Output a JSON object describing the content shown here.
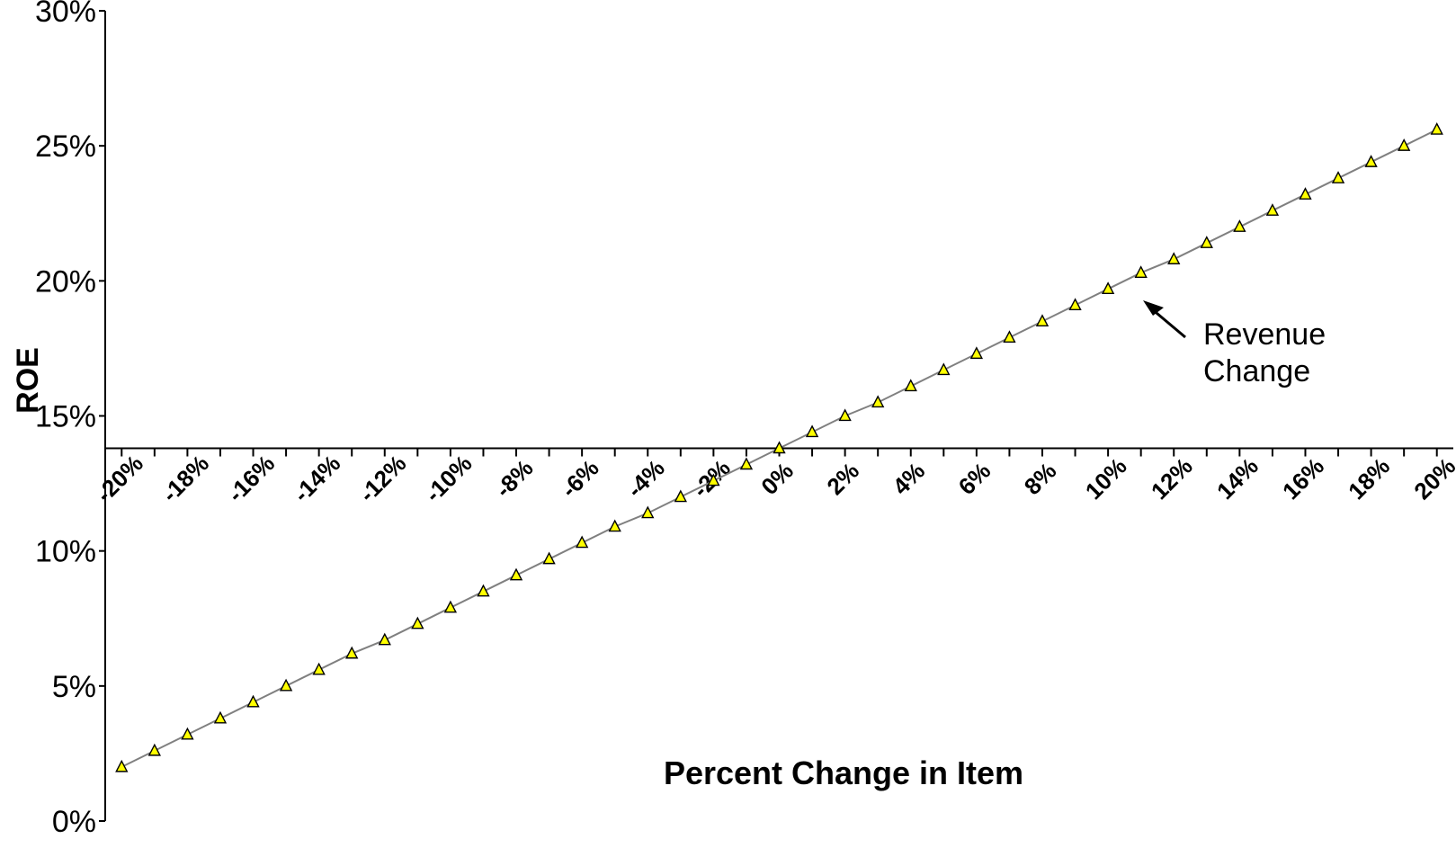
{
  "chart_data": {
    "type": "line",
    "title": "",
    "xlabel": "Percent Change in Item",
    "ylabel": "ROE",
    "xlim": [
      -0.205,
      0.205
    ],
    "ylim": [
      0,
      0.3
    ],
    "x_axis_crosses_y_at": 0.138,
    "yticks": [
      "0%",
      "5%",
      "10%",
      "15%",
      "20%",
      "25%",
      "30%"
    ],
    "ytick_values": [
      0,
      0.05,
      0.1,
      0.15,
      0.2,
      0.25,
      0.3
    ],
    "xticks": [
      "-20%",
      "-18%",
      "-16%",
      "-14%",
      "-12%",
      "-10%",
      "-8%",
      "-6%",
      "-4%",
      "-2%",
      "0%",
      "2%",
      "4%",
      "6%",
      "8%",
      "10%",
      "12%",
      "14%",
      "16%",
      "18%",
      "20%"
    ],
    "xtick_values": [
      -0.2,
      -0.18,
      -0.16,
      -0.14,
      -0.12,
      -0.1,
      -0.08,
      -0.06,
      -0.04,
      -0.02,
      0.0,
      0.02,
      0.04,
      0.06,
      0.08,
      0.1,
      0.12,
      0.14,
      0.16,
      0.18,
      0.2
    ],
    "grid": false,
    "legend": "none",
    "series": [
      {
        "marker": "triangle",
        "color": "#808080",
        "marker_fill": "#ffff00",
        "x": [
          -0.2,
          -0.19,
          -0.18,
          -0.17,
          -0.16,
          -0.15,
          -0.14,
          -0.13,
          -0.12,
          -0.11,
          -0.1,
          -0.09,
          -0.08,
          -0.07,
          -0.06,
          -0.05,
          -0.04,
          -0.03,
          -0.02,
          -0.01,
          0.0,
          0.01,
          0.02,
          0.03,
          0.04,
          0.05,
          0.06,
          0.07,
          0.08,
          0.09,
          0.1,
          0.11,
          0.12,
          0.13,
          0.14,
          0.15,
          0.16,
          0.17,
          0.18,
          0.19,
          0.2
        ],
        "y": [
          0.02,
          0.026,
          0.032,
          0.038,
          0.044,
          0.05,
          0.056,
          0.062,
          0.067,
          0.073,
          0.079,
          0.085,
          0.091,
          0.097,
          0.103,
          0.109,
          0.114,
          0.12,
          0.126,
          0.132,
          0.138,
          0.144,
          0.15,
          0.155,
          0.161,
          0.167,
          0.173,
          0.179,
          0.185,
          0.191,
          0.197,
          0.203,
          0.208,
          0.214,
          0.22,
          0.226,
          0.232,
          0.238,
          0.244,
          0.25,
          0.256
        ]
      }
    ],
    "annotations": [
      {
        "lines": [
          "Revenue",
          "Change"
        ],
        "arrow_to_x": 0.11
      }
    ]
  }
}
